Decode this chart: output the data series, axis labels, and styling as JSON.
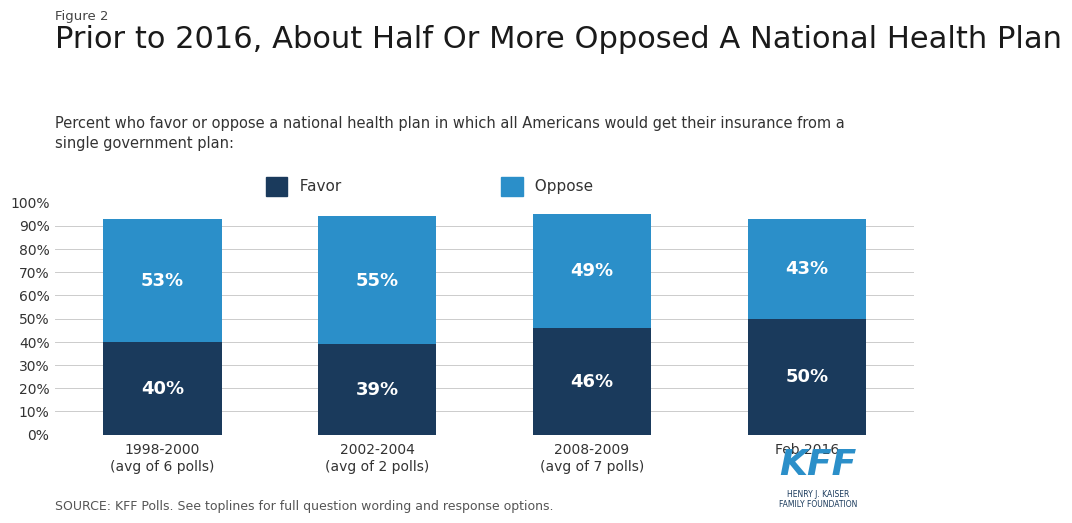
{
  "figure_label": "Figure 2",
  "title": "Prior to 2016, About Half Or More Opposed A National Health Plan",
  "subtitle": "Percent who favor or oppose a national health plan in which all Americans would get their insurance from a\nsingle government plan:",
  "categories": [
    "1998-2000\n(avg of 6 polls)",
    "2002-2004\n(avg of 2 polls)",
    "2008-2009\n(avg of 7 polls)",
    "Feb 2016"
  ],
  "favor_values": [
    40,
    39,
    46,
    50
  ],
  "oppose_values": [
    53,
    55,
    49,
    43
  ],
  "favor_color": "#1a3a5c",
  "oppose_color": "#2b8fc9",
  "background_color": "#ffffff",
  "legend_favor_label": "Favor",
  "legend_oppose_label": "Oppose",
  "source_text": "SOURCE: KFF Polls. See toplines for full question wording and response options.",
  "ylim": [
    0,
    100
  ],
  "yticks": [
    0,
    10,
    20,
    30,
    40,
    50,
    60,
    70,
    80,
    90,
    100
  ],
  "bar_width": 0.55,
  "title_fontsize": 22,
  "subtitle_fontsize": 10.5,
  "figure_label_fontsize": 9.5,
  "tick_fontsize": 10,
  "legend_fontsize": 11,
  "annotation_fontsize": 13,
  "source_fontsize": 9
}
